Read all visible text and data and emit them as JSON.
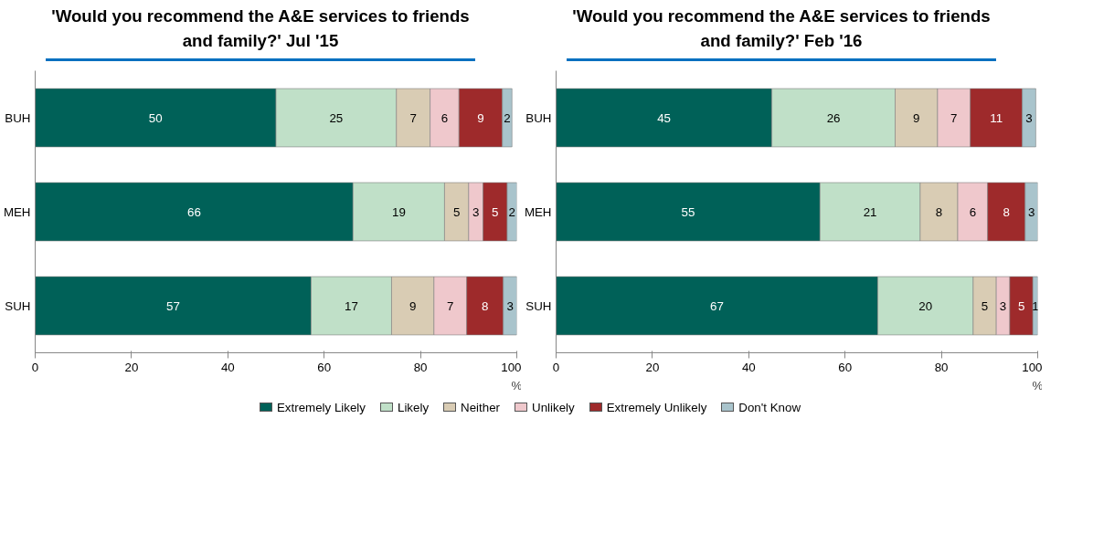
{
  "chart_data": [
    {
      "type": "bar",
      "title": "'Would you recommend the A&E services to friends and family?' Jul '15",
      "categories": [
        "BUH",
        "MEH",
        "SUH"
      ],
      "orientation": "horizontal",
      "stacked": true,
      "xlim": [
        0,
        100
      ],
      "xticks": [
        0,
        20,
        40,
        60,
        80,
        100
      ],
      "xlabel": "%",
      "legend": "bottom",
      "series": [
        {
          "name": "Extremely Likely",
          "color": "#006158",
          "values": [
            50,
            66,
            57.3
          ],
          "value_labels": [
            "50",
            "66",
            "57"
          ]
        },
        {
          "name": "Likely",
          "color": "#c0e0c8",
          "values": [
            25,
            19,
            16.7
          ],
          "value_labels": [
            "25",
            "19",
            "17"
          ]
        },
        {
          "name": "Neither",
          "color": "#d9ccb4",
          "values": [
            7,
            5,
            8.8
          ],
          "value_labels": [
            "7",
            "5",
            "9"
          ]
        },
        {
          "name": "Unlikely",
          "color": "#efc8cc",
          "values": [
            6,
            3,
            6.8
          ],
          "value_labels": [
            "6",
            "3",
            "7"
          ]
        },
        {
          "name": "Extremely Unlikely",
          "color": "#9e2a2b",
          "values": [
            9,
            5,
            7.6
          ],
          "value_labels": [
            "9",
            "5",
            "8"
          ]
        },
        {
          "name": "Don't Know",
          "color": "#a9c4cc",
          "values": [
            2,
            2,
            2.8
          ],
          "value_labels": [
            "2",
            "2",
            "3"
          ]
        }
      ]
    },
    {
      "type": "bar",
      "title": "'Would you recommend the A&E services to friends and family?' Feb '16",
      "categories": [
        "BUH",
        "MEH",
        "SUH"
      ],
      "orientation": "horizontal",
      "stacked": true,
      "xlim": [
        0,
        100
      ],
      "xticks": [
        0,
        20,
        40,
        60,
        80,
        100
      ],
      "xlabel": "%",
      "series": [
        {
          "name": "Extremely Likely",
          "color": "#006158",
          "values": [
            44.8,
            54.8,
            66.8
          ],
          "value_labels": [
            "45",
            "55",
            "67"
          ]
        },
        {
          "name": "Likely",
          "color": "#c0e0c8",
          "values": [
            25.6,
            20.8,
            19.8
          ],
          "value_labels": [
            "26",
            "21",
            "20"
          ]
        },
        {
          "name": "Neither",
          "color": "#d9ccb4",
          "values": [
            8.8,
            7.8,
            4.8
          ],
          "value_labels": [
            "9",
            "8",
            "5"
          ]
        },
        {
          "name": "Unlikely",
          "color": "#efc8cc",
          "values": [
            6.8,
            6.2,
            2.8
          ],
          "value_labels": [
            "7",
            "6",
            "3"
          ]
        },
        {
          "name": "Extremely Unlikely",
          "color": "#9e2a2b",
          "values": [
            10.8,
            7.8,
            4.8
          ],
          "value_labels": [
            "11",
            "8",
            "5"
          ]
        },
        {
          "name": "Don't Know",
          "color": "#a9c4cc",
          "values": [
            2.8,
            2.6,
            1.0
          ],
          "value_labels": [
            "3",
            "3",
            "1"
          ]
        }
      ]
    }
  ]
}
